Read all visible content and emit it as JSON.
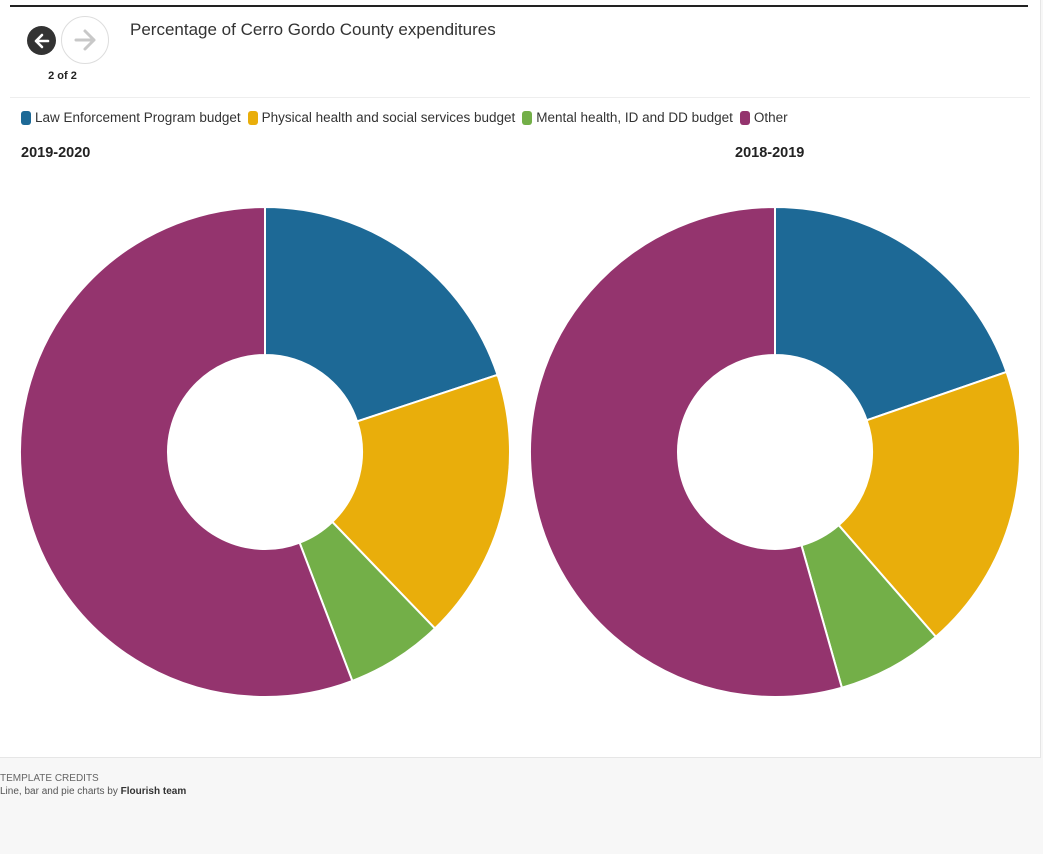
{
  "header": {
    "title": "Percentage of Cerro Gordo County expenditures",
    "step_label": "2 of 2"
  },
  "legend": [
    {
      "label": "Law Enforcement Program budget",
      "color": "#1d6996"
    },
    {
      "label": "Physical health and social services budget",
      "color": "#e9ae0b"
    },
    {
      "label": "Mental health, ID and DD budget",
      "color": "#73af48"
    },
    {
      "label": "Other",
      "color": "#94346e"
    }
  ],
  "chart_data": [
    {
      "type": "pie",
      "title": "2019-2020",
      "donut": true,
      "categories": [
        "Law Enforcement Program budget",
        "Physical health and social services budget",
        "Mental health, ID and DD budget",
        "Other"
      ],
      "values": [
        19.9,
        17.9,
        6.4,
        55.8
      ],
      "colors": [
        "#1d6996",
        "#e9ae0b",
        "#73af48",
        "#94346e"
      ]
    },
    {
      "type": "pie",
      "title": "2018-2019",
      "donut": true,
      "categories": [
        "Law Enforcement Program budget",
        "Physical health and social services budget",
        "Mental health, ID and DD budget",
        "Other"
      ],
      "values": [
        19.7,
        18.9,
        7.0,
        54.4
      ],
      "colors": [
        "#1d6996",
        "#e9ae0b",
        "#73af48",
        "#94346e"
      ]
    }
  ],
  "credits": {
    "label": "Template credits",
    "text": "Line, bar and pie charts by",
    "author": "Flourish team"
  }
}
